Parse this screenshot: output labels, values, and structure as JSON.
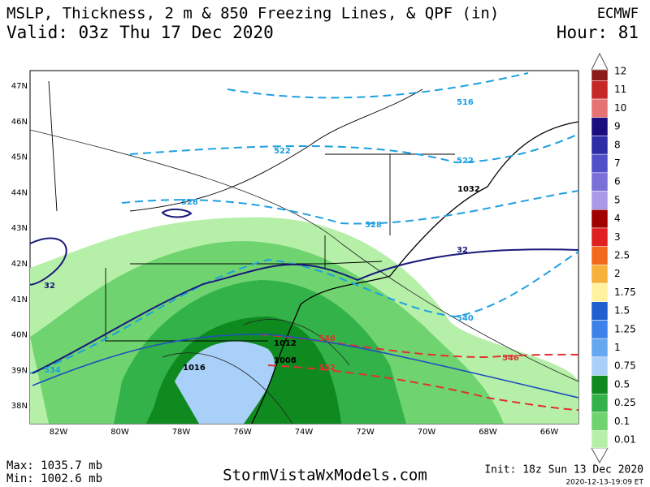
{
  "header": {
    "title": "MSLP, Thickness, 2 m & 850 Freezing Lines, & QPF (in)",
    "model": "ECMWF",
    "valid": "Valid: 03z Thu 17 Dec 2020",
    "hour": "Hour: 81"
  },
  "map": {
    "lat_labels": [
      "47N",
      "46N",
      "45N",
      "44N",
      "43N",
      "42N",
      "41N",
      "40N",
      "39N",
      "38N"
    ],
    "lon_labels": [
      "82W",
      "80W",
      "78W",
      "76W",
      "74W",
      "72W",
      "70W",
      "68W",
      "66W"
    ],
    "thickness_labels": [
      "516",
      "522",
      "522",
      "528",
      "528",
      "534",
      "540",
      "546",
      "546",
      "552"
    ],
    "freezing_labels": [
      "32",
      "32"
    ],
    "pressure_labels": [
      "1032",
      "1016",
      "1012",
      "1008"
    ]
  },
  "colorbar": {
    "labels": [
      "12",
      "11",
      "10",
      "9",
      "8",
      "7",
      "6",
      "5",
      "4",
      "3",
      "2.5",
      "2",
      "1.75",
      "1.5",
      "1.25",
      "1",
      "0.75",
      "0.5",
      "0.25",
      "0.1",
      "0.01"
    ],
    "colors": [
      "#8b1a1a",
      "#c62828",
      "#e57373",
      "#1a0d80",
      "#2d2da8",
      "#5050c8",
      "#7b6fd8",
      "#a99ae8",
      "#a00000",
      "#e02020",
      "#f26a1b",
      "#f5b13a",
      "#fff3a0",
      "#1f5fd0",
      "#3d82e8",
      "#66a8f0",
      "#a9d0f8",
      "#0f8a1f",
      "#34b24a",
      "#6fd46f",
      "#b6f0a8"
    ]
  },
  "footer": {
    "max": "Max: 1035.7 mb",
    "min": "Min: 1002.6 mb",
    "site": "StormVistaWxModels.com",
    "init": "Init: 18z Sun 13 Dec 2020",
    "stamp": "2020-12-13-19:09 ET"
  }
}
